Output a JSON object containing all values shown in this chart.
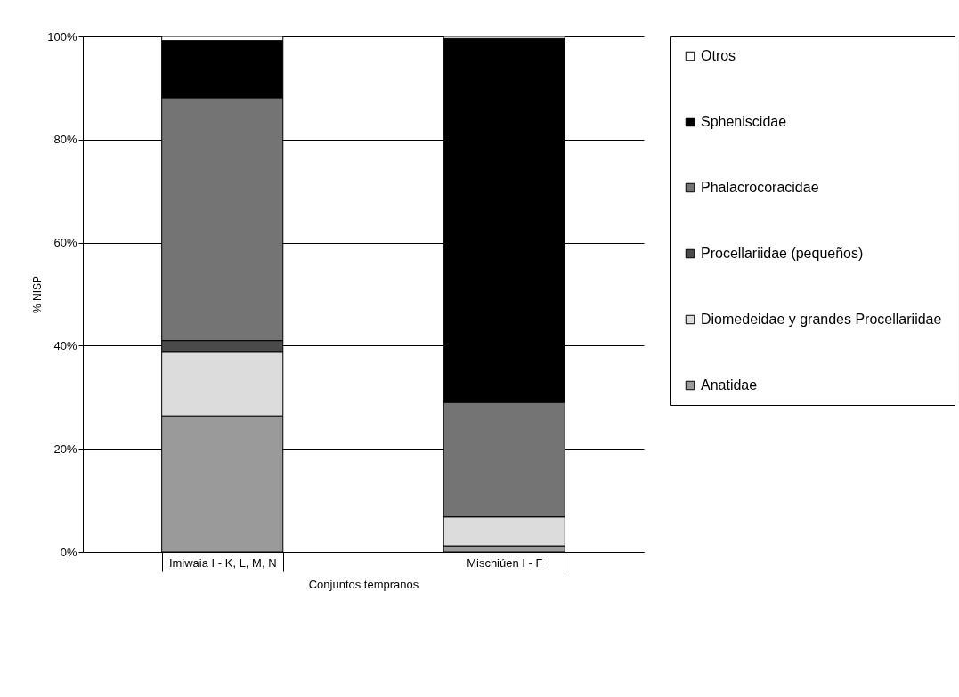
{
  "chart_data": {
    "type": "bar",
    "stacked": true,
    "xlabel": "Conjuntos tempranos",
    "ylabel": "% NISP",
    "categories": [
      "Imiwaia I - K, L, M, N",
      "Mischiúen I - F"
    ],
    "series": [
      {
        "name": "Anatidae",
        "color": "#9a9a9a",
        "values": [
          26.4,
          1.2
        ]
      },
      {
        "name": "Diomedeidae y grandes Procellariidae",
        "color": "#dcdcdc",
        "values": [
          12.5,
          5.6
        ]
      },
      {
        "name": "Procellariidae (pequeños)",
        "color": "#4a4a4a",
        "values": [
          2.1,
          0
        ]
      },
      {
        "name": "Phalacrocoracidae",
        "color": "#747474",
        "values": [
          47.1,
          22.2
        ]
      },
      {
        "name": "Spheniscidae",
        "color": "#000000",
        "values": [
          11.1,
          70.6
        ]
      },
      {
        "name": "Otros",
        "color": "#ffffff",
        "values": [
          0.8,
          0.4
        ]
      }
    ],
    "ylim": [
      0,
      100
    ],
    "yticks": [
      {
        "value": 0,
        "label": "0%"
      },
      {
        "value": 20,
        "label": "20%"
      },
      {
        "value": 40,
        "label": "40%"
      },
      {
        "value": 60,
        "label": "60%"
      },
      {
        "value": 80,
        "label": "80%"
      },
      {
        "value": 100,
        "label": "100%"
      }
    ],
    "grid": "y",
    "legend": "right"
  }
}
